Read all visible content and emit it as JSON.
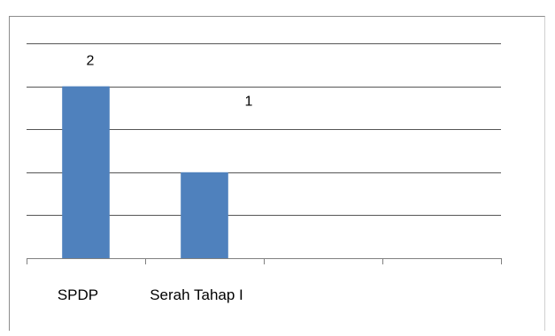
{
  "chart_data": {
    "type": "bar",
    "categories": [
      "SPDP",
      "Serah Tahap I",
      "",
      ""
    ],
    "values": [
      2,
      1,
      null,
      null
    ],
    "data_labels": [
      "2",
      "1",
      "",
      ""
    ],
    "ylim": [
      0,
      2.5
    ],
    "grid": true,
    "legend": "none",
    "bar_color": "#4f81bd",
    "grid_color": "#555555",
    "axis_color": "#808080"
  }
}
